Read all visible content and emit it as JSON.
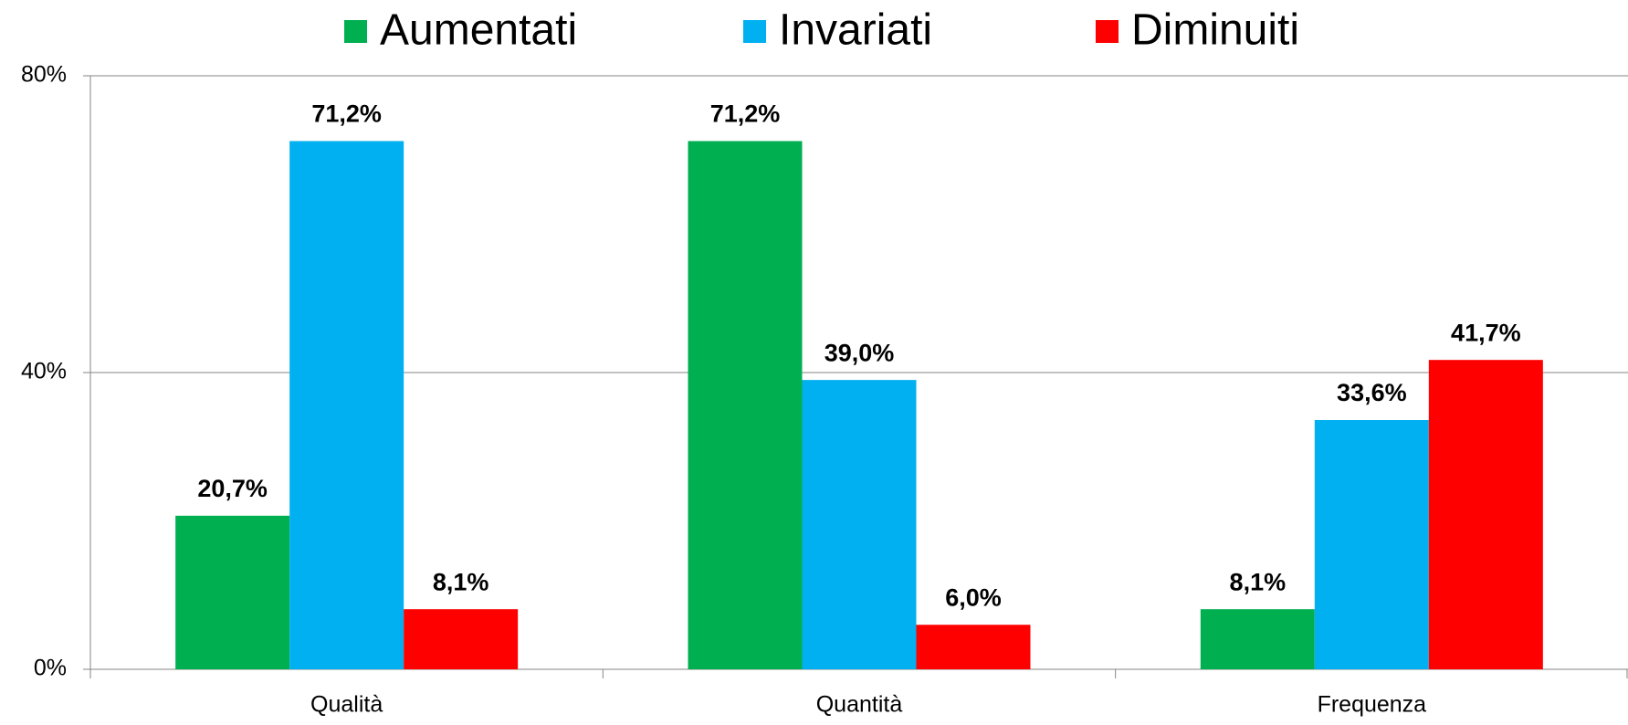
{
  "chart_data": {
    "type": "bar",
    "categories": [
      "Qualità",
      "Quantità",
      "Frequenza"
    ],
    "series": [
      {
        "name": "Aumentati",
        "color": "#00b050",
        "values": [
          20.7,
          71.2,
          8.1
        ],
        "value_labels": [
          "20,7%",
          "71,2%",
          "8,1%"
        ]
      },
      {
        "name": "Invariati",
        "color": "#00b0f0",
        "values": [
          71.2,
          39.0,
          33.6
        ],
        "value_labels": [
          "71,2%",
          "39,0%",
          "33,6%"
        ]
      },
      {
        "name": "Diminuiti",
        "color": "#ff0000",
        "values": [
          8.1,
          6.0,
          41.7
        ],
        "value_labels": [
          "8,1%",
          "6,0%",
          "41,7%"
        ]
      }
    ],
    "ylim": [
      0,
      80
    ],
    "yticks": [
      {
        "value": 0,
        "label": "0%"
      },
      {
        "value": 40,
        "label": "40%"
      },
      {
        "value": 80,
        "label": "80%"
      }
    ],
    "grid": true,
    "legend": "top"
  }
}
